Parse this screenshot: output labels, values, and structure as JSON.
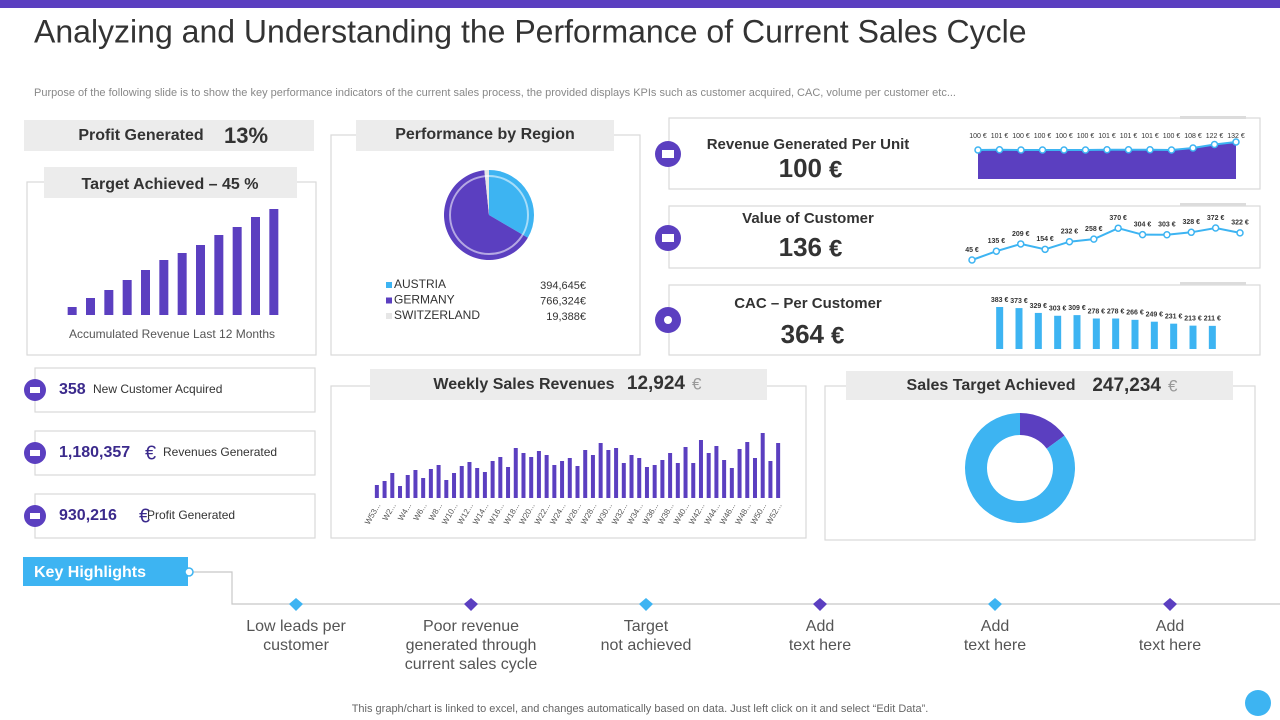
{
  "title": "Analyzing and Understanding the Performance of Current Sales Cycle",
  "subtitle": "Purpose of the following slide is to show the key performance indicators of the current sales process, the provided displays KPIs such as customer acquired, CAC, volume per customer etc...",
  "profit": {
    "label": "Profit Generated",
    "value": "13%"
  },
  "stats": [
    {
      "value": "358",
      "label": "New Customer Acquired"
    },
    {
      "value": "1,180,357",
      "unit": "€",
      "label": "Revenues Generated"
    },
    {
      "value": "930,216",
      "unit": "€",
      "label": "Profit Generated"
    }
  ],
  "chart_data": [
    {
      "type": "bar",
      "title": "Target Achieved – 45 %",
      "xlabel": "Accumulated Revenue Last 12 Months",
      "values": [
        8,
        17,
        25,
        35,
        45,
        55,
        62,
        70,
        80,
        88,
        98,
        106
      ],
      "color": "#5b3fc0"
    },
    {
      "type": "pie",
      "title": "Performance by Region",
      "categories": [
        "AUSTRIA",
        "GERMANY",
        "SWITZERLAND"
      ],
      "values": [
        394645,
        766324,
        19388
      ],
      "value_labels": [
        "394,645€",
        "766,324€",
        "19,388€"
      ],
      "colors": [
        "#3db4f2",
        "#5b3fc0",
        "#e6e6e6"
      ]
    },
    {
      "type": "area",
      "title": "Revenue Generated Per Unit",
      "headline": "100",
      "unit": "€",
      "values": [
        100,
        101,
        100,
        100,
        100,
        100,
        101,
        101,
        101,
        100,
        108,
        122,
        132
      ],
      "value_labels": [
        "100 €",
        "101 €",
        "100 €",
        "100 €",
        "100 €",
        "100 €",
        "101 €",
        "101 €",
        "101 €",
        "100 €",
        "108 €",
        "122 €",
        "132 €"
      ],
      "color": "#5b3fc0",
      "line_color": "#3db4f2"
    },
    {
      "type": "line",
      "title": "Value of Customer",
      "headline": "136",
      "unit": "€",
      "values": [
        45,
        135,
        209,
        154,
        232,
        258,
        370,
        304,
        303,
        328,
        372,
        322
      ],
      "value_labels": [
        "45 €",
        "135 €",
        "209 €",
        "154 €",
        "232 €",
        "258 €",
        "370 €",
        "304 €",
        "303 €",
        "328 €",
        "372 €",
        "322 €"
      ],
      "color": "#3db4f2"
    },
    {
      "type": "bar",
      "title": "CAC – Per Customer",
      "headline": "364",
      "unit": "€",
      "values": [
        383,
        373,
        329,
        303,
        309,
        278,
        278,
        266,
        249,
        231,
        213,
        211
      ],
      "value_labels": [
        "383 €",
        "373 €",
        "329 €",
        "303 €",
        "309 €",
        "278 €",
        "278 €",
        "266 €",
        "249 €",
        "231 €",
        "213 €",
        "211 €"
      ],
      "color": "#3db4f2"
    },
    {
      "type": "bar",
      "title": "Weekly Sales Revenues",
      "headline": "12,924",
      "unit": "€",
      "categories": [
        "W53...",
        null,
        "W2...",
        null,
        "W4...",
        null,
        "W6...",
        null,
        "W8...",
        null,
        "W10...",
        null,
        "W12...",
        null,
        "W14...",
        null,
        "W16...",
        null,
        "W18...",
        null,
        "W20...",
        null,
        "W22...",
        null,
        "W24...",
        null,
        "W26...",
        null,
        "W28...",
        null,
        "W30...",
        null,
        "W32...",
        null,
        "W34...",
        null,
        "W36...",
        null,
        "W38...",
        null,
        "W40...",
        null,
        "W42...",
        null,
        "W44...",
        null,
        "W46...",
        null,
        "W48...",
        null,
        "W50...",
        null,
        "W52..."
      ],
      "values": [
        13,
        17,
        25,
        12,
        23,
        28,
        20,
        29,
        33,
        18,
        25,
        32,
        36,
        30,
        26,
        37,
        41,
        31,
        50,
        45,
        41,
        47,
        43,
        33,
        37,
        40,
        32,
        48,
        43,
        55,
        48,
        50,
        35,
        43,
        40,
        31,
        33,
        38,
        45,
        35,
        51,
        35,
        58,
        45,
        52,
        38,
        30,
        49,
        56,
        40,
        65,
        37,
        55
      ],
      "color": "#5b3fc0"
    },
    {
      "type": "donut",
      "title": "Sales Target Achieved",
      "headline": "247,234",
      "unit": "€",
      "values": [
        15,
        85
      ],
      "colors": [
        "#5b3fc0",
        "#3db4f2"
      ]
    }
  ],
  "highlights": {
    "title": "Key Highlights",
    "items": [
      [
        "Low leads per",
        "customer"
      ],
      [
        "Poor revenue",
        "generated through",
        "current sales cycle"
      ],
      [
        "Target",
        "not achieved"
      ],
      [
        "Add",
        "text here"
      ],
      [
        "Add",
        "text here"
      ],
      [
        "Add",
        "text here"
      ]
    ]
  },
  "footer": "This graph/chart is linked to excel, and changes automatically based on data. Just left click on it and select “Edit Data”."
}
